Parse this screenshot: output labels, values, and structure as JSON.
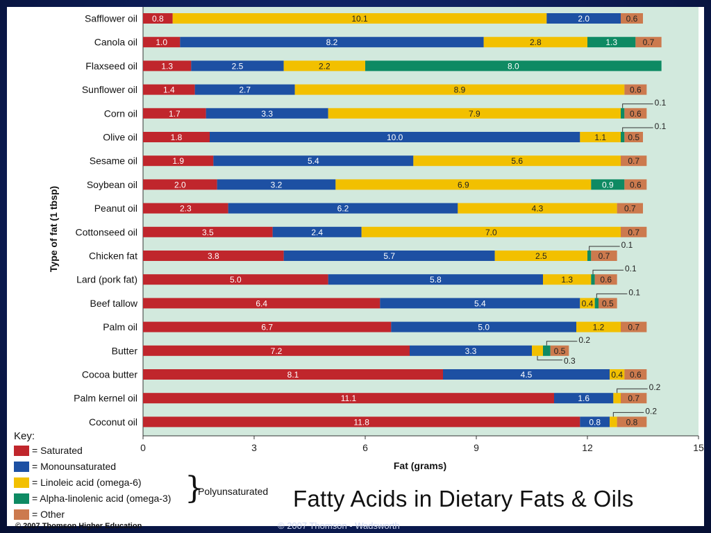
{
  "slide": {
    "title": "Fatty Acids in Dietary Fats & Oils",
    "copyright_inner": "© 2007 Thomson Higher Education",
    "copyright_outer": "© 2007 Thomson - Wadsworth"
  },
  "colors": {
    "plot_background": "#d2e9dd",
    "saturated": "#c0262c",
    "monounsaturated": "#1d50a3",
    "linoleic": "#f2c000",
    "alpha_linolenic": "#0e8a63",
    "other": "#cc7a4e"
  },
  "key": {
    "title": "Key:",
    "items": [
      {
        "label": "= Saturated",
        "color": "#c0262c"
      },
      {
        "label": "= Monounsaturated",
        "color": "#1d50a3"
      },
      {
        "label": "= Linoleic acid (omega-6)",
        "color": "#f2c000"
      },
      {
        "label": "= Alpha-linolenic acid (omega-3)",
        "color": "#0e8a63"
      },
      {
        "label": "= Other",
        "color": "#cc7a4e"
      }
    ],
    "group_label": "Polyunsaturated"
  },
  "chart_data": {
    "type": "bar",
    "orientation": "horizontal",
    "stacked": true,
    "xlabel": "Fat (grams)",
    "ylabel": "Type of fat (1 tbsp)",
    "xlim": [
      0,
      15
    ],
    "xticks": [
      0,
      3,
      6,
      9,
      12,
      15
    ],
    "grid": false,
    "legend": "bottom-left",
    "series_order": [
      "Saturated",
      "Monounsaturated",
      "Linoleic acid (omega-6)",
      "Alpha-linolenic acid (omega-3)",
      "Other"
    ],
    "categories": [
      {
        "name": "Safflower oil",
        "segments": [
          [
            "sat",
            0.8,
            "0.8"
          ],
          [
            "lin",
            10.1,
            "10.1"
          ],
          [
            "mono",
            2.0,
            "2.0"
          ],
          [
            "oth",
            0.6,
            "0.6"
          ]
        ]
      },
      {
        "name": "Canola oil",
        "segments": [
          [
            "sat",
            1.0,
            "1.0"
          ],
          [
            "mono",
            8.2,
            "8.2"
          ],
          [
            "lin",
            2.8,
            "2.8"
          ],
          [
            "ala",
            1.3,
            "1.3"
          ],
          [
            "oth",
            0.7,
            "0.7"
          ]
        ]
      },
      {
        "name": "Flaxseed oil",
        "segments": [
          [
            "sat",
            1.3,
            "1.3"
          ],
          [
            "mono",
            2.5,
            "2.5"
          ],
          [
            "lin",
            2.2,
            "2.2"
          ],
          [
            "ala",
            8.0,
            "8.0"
          ]
        ]
      },
      {
        "name": "Sunflower oil",
        "segments": [
          [
            "sat",
            1.4,
            "1.4"
          ],
          [
            "mono",
            2.7,
            "2.7"
          ],
          [
            "lin",
            8.9,
            "8.9"
          ],
          [
            "oth",
            0.6,
            "0.6"
          ]
        ]
      },
      {
        "name": "Corn oil",
        "segments": [
          [
            "sat",
            1.7,
            "1.7"
          ],
          [
            "mono",
            3.3,
            "3.3"
          ],
          [
            "lin",
            7.9,
            "7.9"
          ],
          [
            "ala",
            0.1,
            "0.1",
            "callout"
          ],
          [
            "oth",
            0.6,
            "0.6"
          ]
        ]
      },
      {
        "name": "Olive oil",
        "segments": [
          [
            "sat",
            1.8,
            "1.8"
          ],
          [
            "mono",
            10.0,
            "10.0"
          ],
          [
            "lin",
            1.1,
            "1.1"
          ],
          [
            "ala",
            0.1,
            "0.1",
            "callout"
          ],
          [
            "oth",
            0.5,
            "0.5"
          ]
        ]
      },
      {
        "name": "Sesame oil",
        "segments": [
          [
            "sat",
            1.9,
            "1.9"
          ],
          [
            "mono",
            5.4,
            "5.4"
          ],
          [
            "lin",
            5.6,
            "5.6"
          ],
          [
            "oth",
            0.7,
            "0.7"
          ]
        ]
      },
      {
        "name": "Soybean oil",
        "segments": [
          [
            "sat",
            2.0,
            "2.0"
          ],
          [
            "mono",
            3.2,
            "3.2"
          ],
          [
            "lin",
            6.9,
            "6.9"
          ],
          [
            "ala",
            0.9,
            "0.9"
          ],
          [
            "oth",
            0.6,
            "0.6"
          ]
        ]
      },
      {
        "name": "Peanut oil",
        "segments": [
          [
            "sat",
            2.3,
            "2.3"
          ],
          [
            "mono",
            6.2,
            "6.2"
          ],
          [
            "lin",
            4.3,
            "4.3"
          ],
          [
            "oth",
            0.7,
            "0.7"
          ]
        ]
      },
      {
        "name": "Cottonseed oil",
        "segments": [
          [
            "sat",
            3.5,
            "3.5"
          ],
          [
            "mono",
            2.4,
            "2.4"
          ],
          [
            "lin",
            7.0,
            "7.0"
          ],
          [
            "oth",
            0.7,
            "0.7"
          ]
        ]
      },
      {
        "name": "Chicken fat",
        "segments": [
          [
            "sat",
            3.8,
            "3.8"
          ],
          [
            "mono",
            5.7,
            "5.7"
          ],
          [
            "lin",
            2.5,
            "2.5"
          ],
          [
            "ala",
            0.1,
            "0.1",
            "callout"
          ],
          [
            "oth",
            0.7,
            "0.7"
          ]
        ]
      },
      {
        "name": "Lard (pork fat)",
        "segments": [
          [
            "sat",
            5.0,
            "5.0"
          ],
          [
            "mono",
            5.8,
            "5.8"
          ],
          [
            "lin",
            1.3,
            "1.3"
          ],
          [
            "ala",
            0.1,
            "0.1",
            "callout"
          ],
          [
            "oth",
            0.6,
            "0.6"
          ]
        ]
      },
      {
        "name": "Beef tallow",
        "segments": [
          [
            "sat",
            6.4,
            "6.4"
          ],
          [
            "mono",
            5.4,
            "5.4"
          ],
          [
            "lin",
            0.4,
            "0.4"
          ],
          [
            "ala",
            0.1,
            "0.1",
            "callout"
          ],
          [
            "oth",
            0.5,
            "0.5"
          ]
        ]
      },
      {
        "name": "Palm oil",
        "segments": [
          [
            "sat",
            6.7,
            "6.7"
          ],
          [
            "mono",
            5.0,
            "5.0"
          ],
          [
            "lin",
            1.2,
            "1.2"
          ],
          [
            "oth",
            0.7,
            "0.7"
          ]
        ]
      },
      {
        "name": "Butter",
        "segments": [
          [
            "sat",
            7.2,
            "7.2"
          ],
          [
            "mono",
            3.3,
            "3.3"
          ],
          [
            "lin",
            0.3,
            "0.3",
            "callout-below"
          ],
          [
            "ala",
            0.2,
            "0.2",
            "callout"
          ],
          [
            "oth",
            0.5,
            "0.5"
          ]
        ]
      },
      {
        "name": "Cocoa butter",
        "segments": [
          [
            "sat",
            8.1,
            "8.1"
          ],
          [
            "mono",
            4.5,
            "4.5"
          ],
          [
            "lin",
            0.4,
            "0.4"
          ],
          [
            "oth",
            0.6,
            "0.6"
          ]
        ]
      },
      {
        "name": "Palm kernel oil",
        "segments": [
          [
            "sat",
            11.1,
            "11.1"
          ],
          [
            "mono",
            1.6,
            "1.6"
          ],
          [
            "lin",
            0.2,
            "0.2",
            "callout"
          ],
          [
            "oth",
            0.7,
            "0.7"
          ]
        ]
      },
      {
        "name": "Coconut oil",
        "segments": [
          [
            "sat",
            11.8,
            "11.8"
          ],
          [
            "mono",
            0.8,
            "0.8"
          ],
          [
            "lin",
            0.2,
            "0.2",
            "callout"
          ],
          [
            "oth",
            0.8,
            "0.8"
          ]
        ]
      }
    ]
  }
}
